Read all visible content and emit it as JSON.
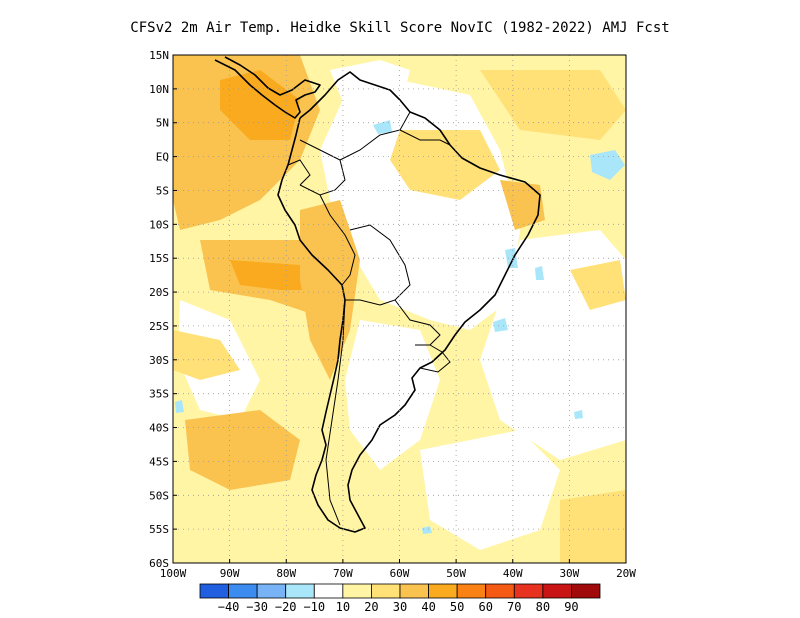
{
  "title": "CFSv2  2m Air Temp. Heidke Skill Score NovIC (1982-2022) AMJ Fcst",
  "map": {
    "lon_range": [
      -100,
      -20
    ],
    "lat_range": [
      -60,
      15
    ],
    "lat_ticks": [
      "15N",
      "10N",
      "5N",
      "EQ",
      "5S",
      "10S",
      "15S",
      "20S",
      "25S",
      "30S",
      "35S",
      "40S",
      "45S",
      "50S",
      "55S",
      "60S"
    ],
    "lon_ticks": [
      "100W",
      "90W",
      "80W",
      "70W",
      "60W",
      "50W",
      "40W",
      "30W",
      "20W"
    ],
    "grid": "dotted"
  },
  "colorbar": {
    "colors": [
      "#1f5fe0",
      "#3c8cf0",
      "#78b4f5",
      "#aae6fa",
      "#ffffff",
      "#fff5a5",
      "#ffe178",
      "#fac350",
      "#faaa1e",
      "#fa8214",
      "#f55a14",
      "#e6321e",
      "#c81414",
      "#a00a0a"
    ],
    "labels": [
      "-40",
      "-30",
      "-20",
      "-10",
      "10",
      "20",
      "30",
      "40",
      "50",
      "60",
      "70",
      "80",
      "90"
    ]
  }
}
